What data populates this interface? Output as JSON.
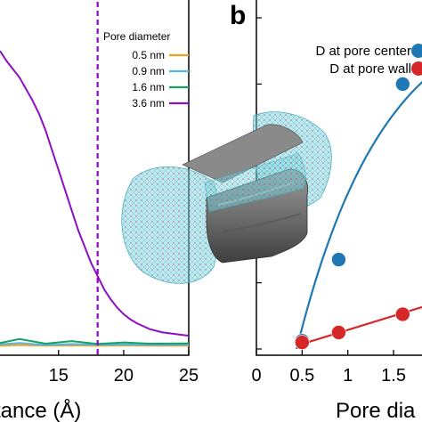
{
  "panel_b_label": "b",
  "chart_data": [
    {
      "type": "line",
      "panel": "a",
      "xlabel": "tance (Å)",
      "xlim": [
        10.5,
        25
      ],
      "x_ticks": [
        "15",
        "20",
        "25"
      ],
      "legend_title": "Pore diameter",
      "legend_position": "top-right",
      "vline": {
        "x": 18,
        "color": "#9900cc"
      },
      "series": [
        {
          "name": "0.5 nm",
          "color": "#f0a020",
          "points": [
            [
              10.5,
              0.01
            ],
            [
              12,
              0.012
            ],
            [
              14,
              0.01
            ],
            [
              16,
              0.011
            ],
            [
              18,
              0.01
            ],
            [
              20,
              0.011
            ],
            [
              22,
              0.01
            ],
            [
              25,
              0.01
            ]
          ]
        },
        {
          "name": "0.9 nm",
          "color": "#56b4e9",
          "points": [
            [
              10.5,
              0.014
            ],
            [
              12,
              0.018
            ],
            [
              14,
              0.012
            ],
            [
              16,
              0.015
            ],
            [
              18,
              0.013
            ],
            [
              20,
              0.014
            ],
            [
              22,
              0.012
            ],
            [
              25,
              0.013
            ]
          ]
        },
        {
          "name": "1.6 nm",
          "color": "#18a060",
          "points": [
            [
              10.5,
              0.018
            ],
            [
              12,
              0.03
            ],
            [
              14,
              0.016
            ],
            [
              16,
              0.024
            ],
            [
              18,
              0.015
            ],
            [
              20,
              0.02
            ],
            [
              22,
              0.016
            ],
            [
              25,
              0.017
            ]
          ]
        },
        {
          "name": "3.6 nm",
          "color": "#8a10c8",
          "points": [
            [
              10.5,
              0.9
            ],
            [
              11,
              0.87
            ],
            [
              12,
              0.82
            ],
            [
              13,
              0.75
            ],
            [
              13.5,
              0.71
            ],
            [
              14,
              0.66
            ],
            [
              14.5,
              0.6
            ],
            [
              15,
              0.54
            ],
            [
              15.5,
              0.48
            ],
            [
              16,
              0.42
            ],
            [
              16.5,
              0.36
            ],
            [
              17,
              0.31
            ],
            [
              17.5,
              0.26
            ],
            [
              18,
              0.22
            ],
            [
              18.5,
              0.18
            ],
            [
              19,
              0.15
            ],
            [
              19.5,
              0.125
            ],
            [
              20,
              0.105
            ],
            [
              20.5,
              0.09
            ],
            [
              21,
              0.078
            ],
            [
              22,
              0.06
            ],
            [
              23,
              0.05
            ],
            [
              24,
              0.045
            ],
            [
              25,
              0.04
            ]
          ]
        }
      ]
    },
    {
      "type": "scatter",
      "panel": "b",
      "xlabel": "Pore dia",
      "xlim": [
        0,
        1.85
      ],
      "x_ticks": [
        "0",
        "0.5",
        "1",
        "1.5"
      ],
      "ylim": [
        0,
        1
      ],
      "legend_position": "top-right",
      "series": [
        {
          "name": "D at pore center",
          "color": "#1f77b4",
          "points": [
            [
              0.5,
              0.025
            ],
            [
              0.9,
              0.27
            ],
            [
              1.6,
              0.8
            ]
          ]
        },
        {
          "name": "D at pore wall",
          "color": "#d62728",
          "points": [
            [
              0.5,
              0.02
            ],
            [
              0.9,
              0.05
            ],
            [
              1.6,
              0.105
            ]
          ]
        }
      ]
    }
  ]
}
